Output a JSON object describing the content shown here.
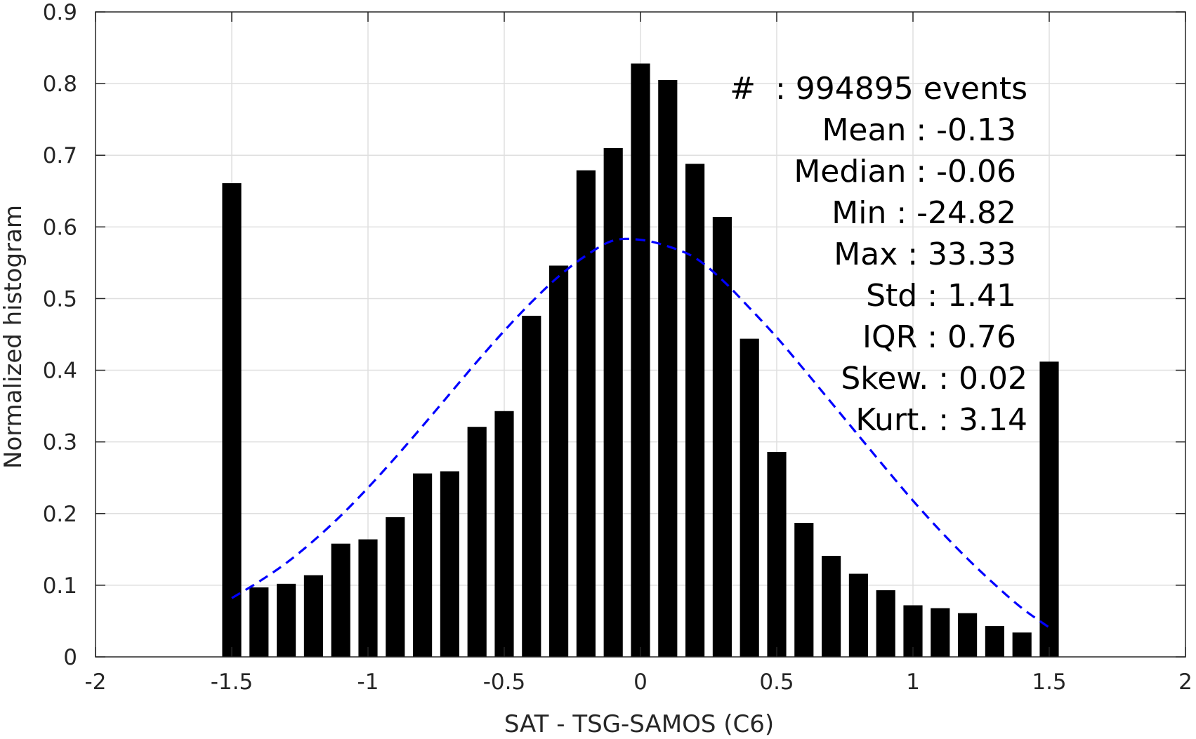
{
  "chart_data": {
    "type": "bar",
    "title": "",
    "xlabel": "SAT - TSG-SAMOS (C6)",
    "ylabel": "Normalized histogram",
    "xlim": [
      -2,
      2
    ],
    "ylim": [
      0,
      0.9
    ],
    "xticks": [
      "-2",
      "-1.5",
      "-1",
      "-0.5",
      "0",
      "0.5",
      "1",
      "1.5",
      "2"
    ],
    "yticks": [
      "0",
      "0.1",
      "0.2",
      "0.3",
      "0.4",
      "0.5",
      "0.6",
      "0.7",
      "0.8",
      "0.9"
    ],
    "grid": true,
    "bar_color": "#000000",
    "bars": {
      "x": [
        -1.5,
        -1.4,
        -1.3,
        -1.2,
        -1.1,
        -1.0,
        -0.9,
        -0.8,
        -0.7,
        -0.6,
        -0.5,
        -0.4,
        -0.3,
        -0.2,
        -0.1,
        0.0,
        0.1,
        0.2,
        0.3,
        0.4,
        0.5,
        0.6,
        0.7,
        0.8,
        0.9,
        1.0,
        1.1,
        1.2,
        1.3,
        1.4,
        1.5
      ],
      "values": [
        0.661,
        0.097,
        0.102,
        0.114,
        0.158,
        0.164,
        0.195,
        0.256,
        0.259,
        0.321,
        0.343,
        0.476,
        0.546,
        0.679,
        0.71,
        0.828,
        0.805,
        0.688,
        0.614,
        0.444,
        0.286,
        0.187,
        0.141,
        0.116,
        0.093,
        0.072,
        0.068,
        0.061,
        0.043,
        0.034,
        0.412
      ],
      "width": 0.07
    },
    "fit_curve": {
      "style": "dashed",
      "color": "#0000ff",
      "x": [
        -1.5,
        -1.4,
        -1.3,
        -1.2,
        -1.1,
        -1.0,
        -0.9,
        -0.8,
        -0.7,
        -0.6,
        -0.5,
        -0.4,
        -0.3,
        -0.2,
        -0.1,
        0.0,
        0.1,
        0.2,
        0.3,
        0.4,
        0.5,
        0.6,
        0.7,
        0.8,
        0.9,
        1.0,
        1.1,
        1.2,
        1.3,
        1.4,
        1.5
      ],
      "values": [
        0.082,
        0.105,
        0.131,
        0.162,
        0.197,
        0.236,
        0.278,
        0.322,
        0.367,
        0.412,
        0.455,
        0.495,
        0.531,
        0.56,
        0.581,
        0.582,
        0.573,
        0.557,
        0.526,
        0.487,
        0.446,
        0.401,
        0.355,
        0.309,
        0.263,
        0.218,
        0.176,
        0.137,
        0.101,
        0.068,
        0.041
      ]
    },
    "stats": [
      {
        "label": "#  ",
        "value": ": 994895 events"
      },
      {
        "label": "Mean ",
        "value": ": -0.13"
      },
      {
        "label": "Median ",
        "value": ": -0.06"
      },
      {
        "label": "Min ",
        "value": ": -24.82"
      },
      {
        "label": "Max ",
        "value": ": 33.33"
      },
      {
        "label": "Std ",
        "value": ": 1.41"
      },
      {
        "label": "IQR ",
        "value": ": 0.76"
      },
      {
        "label": "Skew. ",
        "value": ": 0.02"
      },
      {
        "label": "Kurt. ",
        "value": ": 3.14"
      }
    ]
  }
}
